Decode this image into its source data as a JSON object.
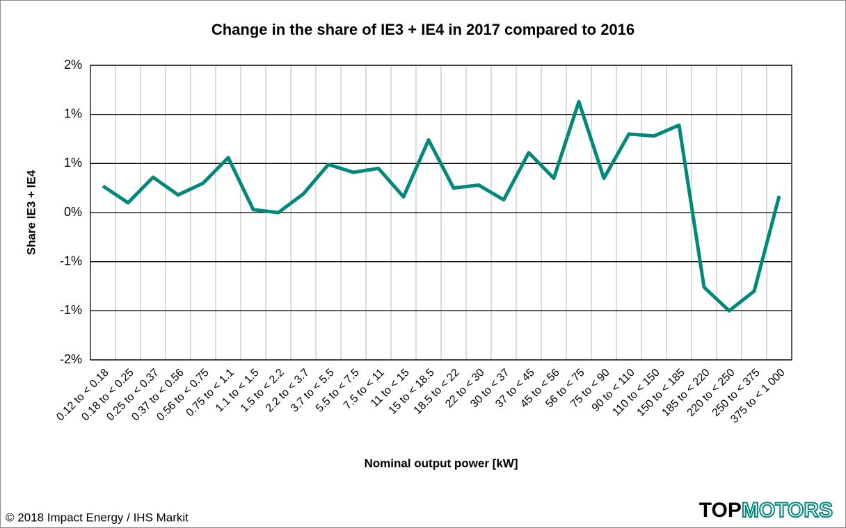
{
  "chart_data": {
    "type": "line",
    "title": "Change in the share of IE3 + IE4 in 2017 compared to 2016",
    "xlabel": "Nominal output power [kW]",
    "ylabel": "Share IE3 + IE4",
    "categories": [
      "0.12 to < 0.18",
      "0.18 to < 0.25",
      "0.25 to < 0.37",
      "0.37 to < 0.56",
      "0.56 to < 0.75",
      "0.75 to < 1.1",
      "1.1 to < 1.5",
      "1.5 to < 2.2",
      "2.2 to < 3.7",
      "3.7 to < 5.5",
      "5.5 to < 7.5",
      "7.5 to < 11",
      "11 to < 15",
      "15 to < 18.5",
      "18.5 to < 22",
      "22 to < 30",
      "30 to < 37",
      "37 to < 45",
      "45 to < 56",
      "56 to < 75",
      "75 to < 90",
      "90 to < 110",
      "110 to < 150",
      "150 to < 185",
      "185 to < 220",
      "220 to < 250",
      "250 to < 375",
      "375 to < 1 000"
    ],
    "values": [
      0.27,
      0.1,
      0.36,
      0.18,
      0.3,
      0.56,
      0.03,
      0.0,
      0.19,
      0.49,
      0.41,
      0.45,
      0.16,
      0.74,
      0.25,
      0.28,
      0.13,
      0.61,
      0.35,
      1.13,
      0.35,
      0.8,
      0.78,
      0.89,
      -0.76,
      -1.0,
      -0.8,
      0.17
    ],
    "color": "#00897b",
    "ylim": [
      -1.5,
      1.5
    ],
    "yticks": [
      {
        "value": -1.5,
        "label": "-2%"
      },
      {
        "value": -1.0,
        "label": "-1%"
      },
      {
        "value": -0.5,
        "label": "-1%"
      },
      {
        "value": 0,
        "label": "0%"
      },
      {
        "value": 0.5,
        "label": "1%"
      },
      {
        "value": 1.0,
        "label": "1%"
      },
      {
        "value": 1.5,
        "label": "2%"
      }
    ],
    "grid": true
  },
  "footer": {
    "copyright": "© 2018 Impact Energy / IHS Markit",
    "logo_top": "TOP",
    "logo_motors": "MOTORS"
  }
}
